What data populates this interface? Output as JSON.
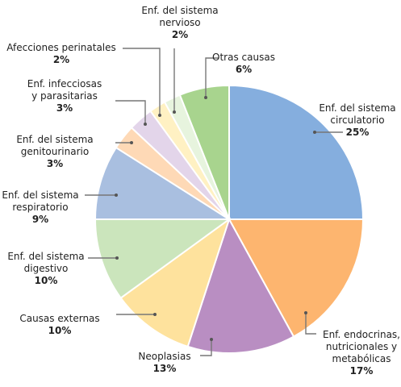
{
  "chart_data": {
    "type": "pie",
    "title": "",
    "unit": "%",
    "slices": [
      {
        "name_lines": [
          "Enf. del sistema",
          "circulatorio"
        ],
        "value": 25,
        "label": "25%",
        "color": "#85aede"
      },
      {
        "name_lines": [
          "Enf. endocrinas,",
          "nutricionales y",
          "metabólicas"
        ],
        "value": 17,
        "label": "17%",
        "color": "#fdb56f"
      },
      {
        "name_lines": [
          "Neoplasias"
        ],
        "value": 13,
        "label": "13%",
        "color": "#b98ec2"
      },
      {
        "name_lines": [
          "Causas externas"
        ],
        "value": 10,
        "label": "10%",
        "color": "#fee29d"
      },
      {
        "name_lines": [
          "Enf. del sistema",
          "digestivo"
        ],
        "value": 10,
        "label": "10%",
        "color": "#cbe5bc"
      },
      {
        "name_lines": [
          "Enf. del sistema",
          "respiratorio"
        ],
        "value": 9,
        "label": "9%",
        "color": "#a9bfe0"
      },
      {
        "name_lines": [
          "Enf. del sistema",
          "genitourinario"
        ],
        "value": 3,
        "label": "3%",
        "color": "#fed9b6"
      },
      {
        "name_lines": [
          "Enf. infecciosas",
          "y parasitarias"
        ],
        "value": 3,
        "label": "3%",
        "color": "#e3d5ea"
      },
      {
        "name_lines": [
          "Afecciones perinatales"
        ],
        "value": 2,
        "label": "2%",
        "color": "#fff1c3"
      },
      {
        "name_lines": [
          "Enf. del sistema",
          "nervioso"
        ],
        "value": 2,
        "label": "2%",
        "color": "#e7f4de"
      },
      {
        "name_lines": [
          "Otras causas"
        ],
        "value": 6,
        "label": "6%",
        "color": "#a8d48e"
      }
    ]
  }
}
